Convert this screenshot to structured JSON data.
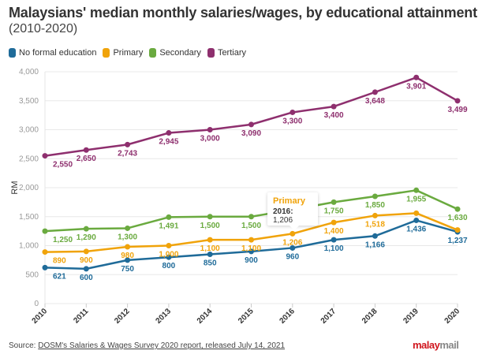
{
  "chart_data": {
    "type": "line",
    "title": "Malaysians' median monthly salaries/wages, by educational attainment",
    "subtitle": "(2010-2020)",
    "xlabel": "",
    "ylabel": "RM",
    "ylim": [
      0,
      4000
    ],
    "yticks": [
      0,
      500,
      1000,
      1500,
      2000,
      2500,
      3000,
      3500,
      4000
    ],
    "ytick_labels": [
      "0",
      "500",
      "1,000",
      "1,500",
      "2,000",
      "2,500",
      "3,000",
      "3,500",
      "4,000"
    ],
    "x": [
      "2010",
      "2011",
      "2012",
      "2013",
      "2014",
      "2015",
      "2016",
      "2017",
      "2018",
      "2019",
      "2020"
    ],
    "grid": true,
    "legend_position": "top-left",
    "series": [
      {
        "name": "No formal education",
        "color": "#1f6b99",
        "values": [
          621,
          600,
          750,
          800,
          850,
          900,
          960,
          1100,
          1166,
          1436,
          1237
        ],
        "labels": [
          "621",
          "600",
          "750",
          "800",
          "850",
          "900",
          "960",
          "1,100",
          "1,166",
          "1,436",
          "1,237"
        ]
      },
      {
        "name": "Primary",
        "color": "#f0a30a",
        "values": [
          890,
          900,
          980,
          1000,
          1100,
          1100,
          1206,
          1400,
          1518,
          1560,
          1270
        ],
        "labels": [
          "890",
          "900",
          "980",
          "1,000",
          "1,100",
          "1,100",
          "1,206",
          "1,400",
          "1,518",
          "",
          ""
        ]
      },
      {
        "name": "Secondary",
        "color": "#6aaa3f",
        "values": [
          1250,
          1290,
          1300,
          1491,
          1500,
          1500,
          1620,
          1750,
          1850,
          1955,
          1630
        ],
        "labels": [
          "1,250",
          "1,290",
          "1,300",
          "1,491",
          "1,500",
          "1,500",
          "",
          "1,750",
          "1,850",
          "1,955",
          "1,630"
        ]
      },
      {
        "name": "Tertiary",
        "color": "#8e2f6e",
        "values": [
          2550,
          2650,
          2743,
          2945,
          3000,
          3090,
          3300,
          3400,
          3648,
          3901,
          3499
        ],
        "labels": [
          "2,550",
          "2,650",
          "2,743",
          "2,945",
          "3,000",
          "3,090",
          "3,300",
          "3,400",
          "3,648",
          "3,901",
          "3,499"
        ]
      }
    ]
  },
  "tooltip": {
    "series": "Primary",
    "year": "2016:",
    "value": "1,206"
  },
  "footer": {
    "source_prefix": "Source:",
    "source_link": "DOSM's Salaries & Wages Survey 2020 report, released July 14, 2021"
  },
  "logo": {
    "part1": "malay",
    "part2": "mail"
  }
}
